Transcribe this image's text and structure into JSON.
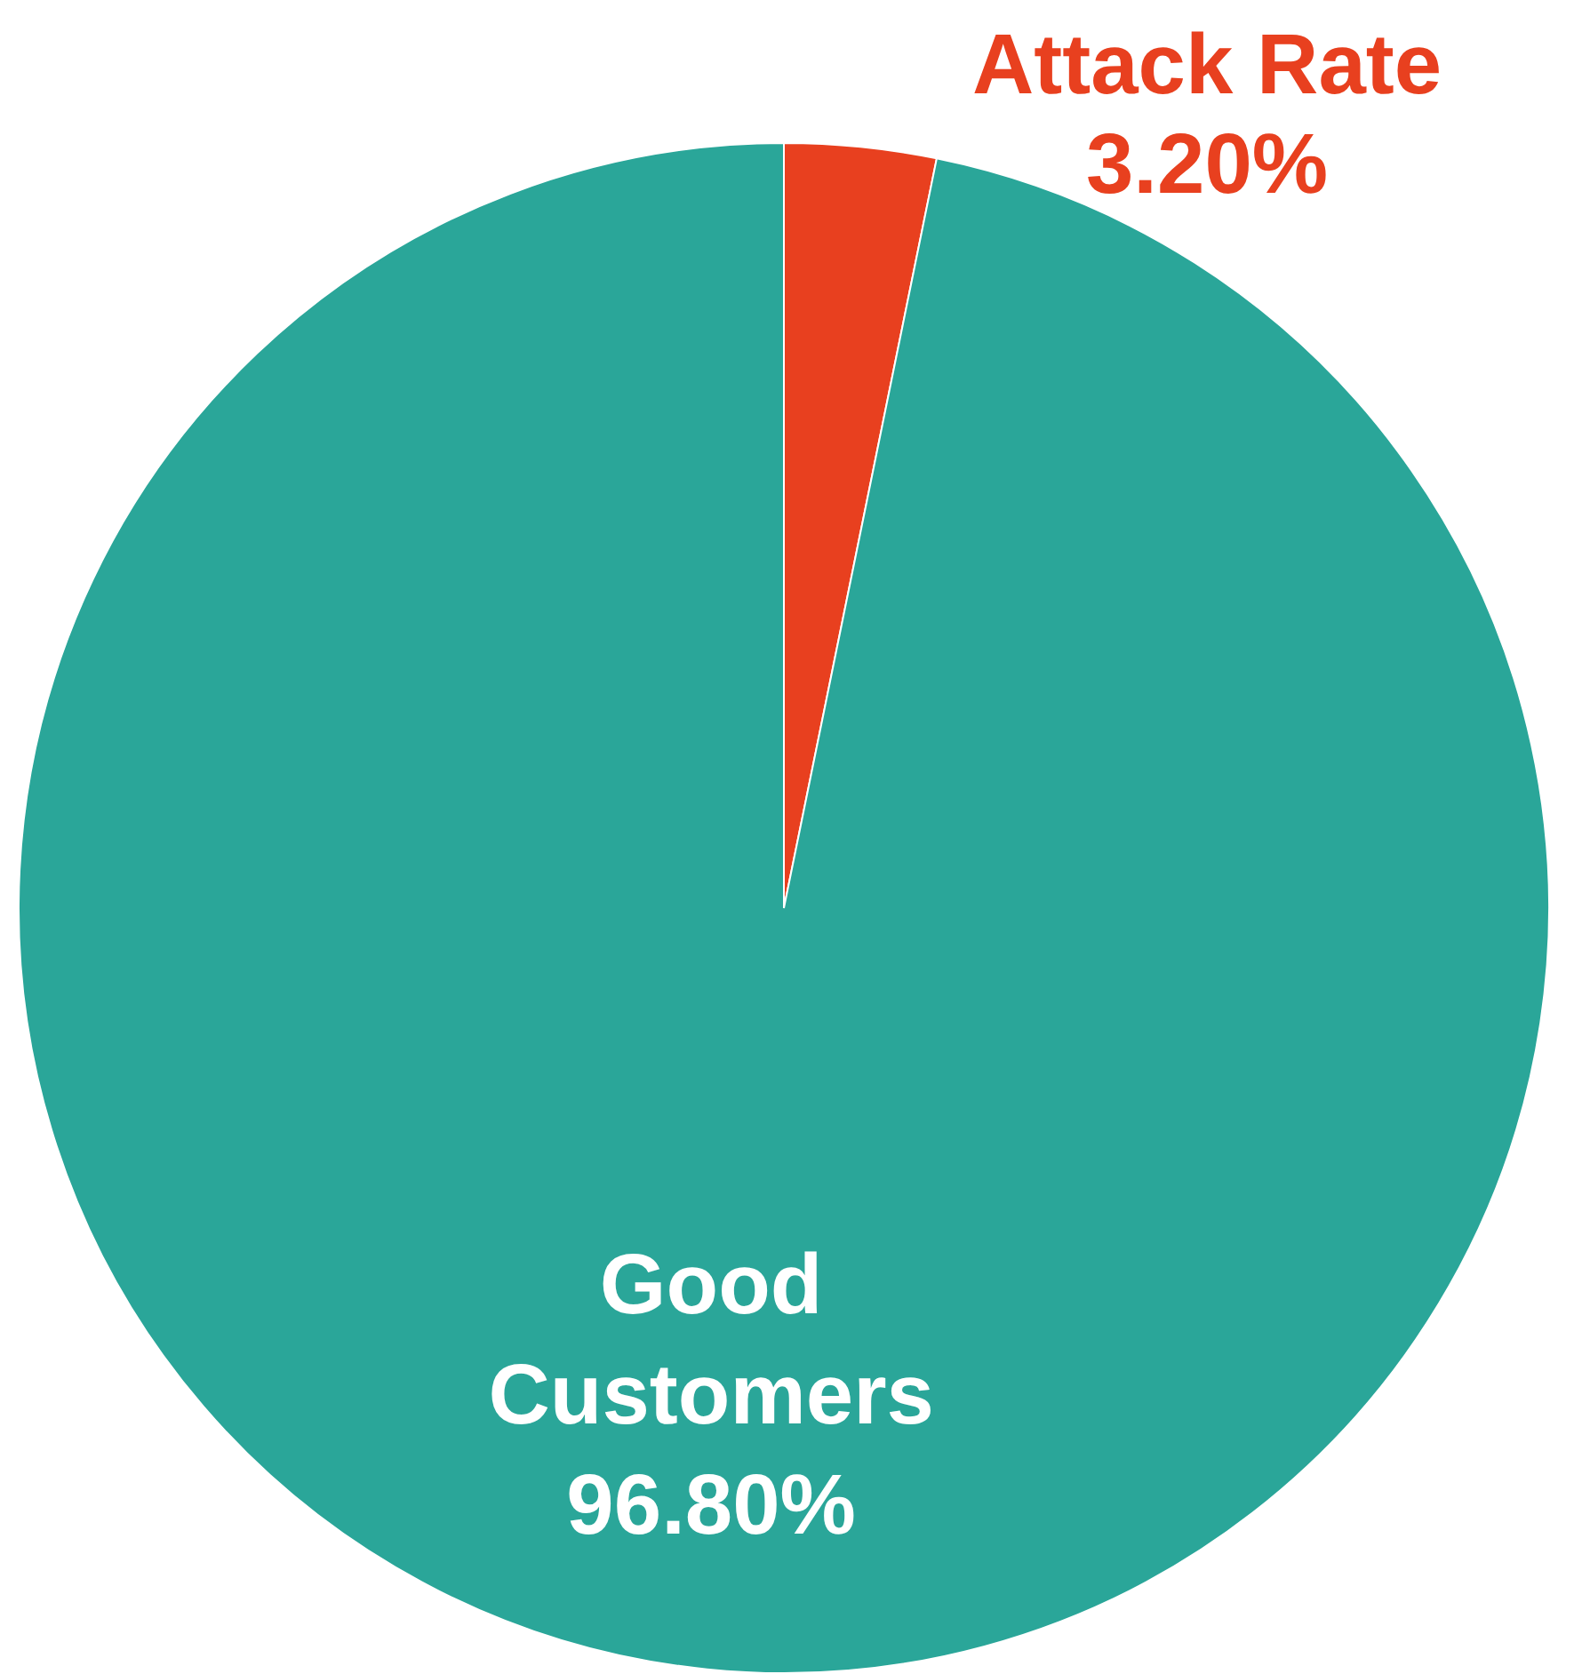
{
  "chart_data": {
    "type": "pie",
    "categories": [
      "Attack Rate",
      "Good Customers"
    ],
    "values": [
      3.2,
      96.8
    ],
    "colors": [
      "#e8401f",
      "#2aa699"
    ],
    "value_labels": [
      "3.20%",
      "96.80%"
    ],
    "legend": false
  }
}
